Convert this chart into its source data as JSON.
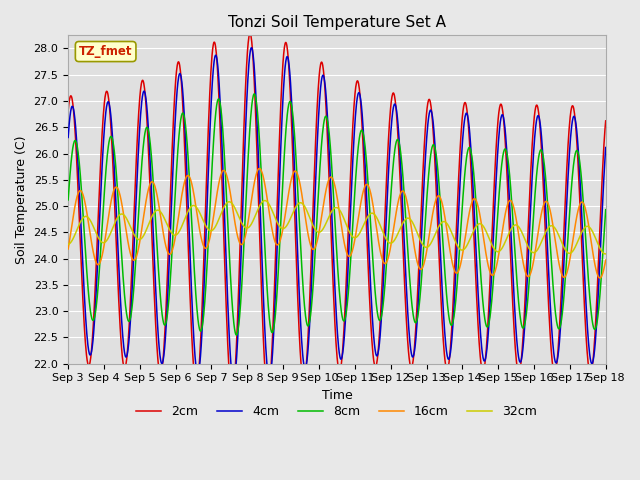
{
  "title": "Tonzi Soil Temperature Set A",
  "xlabel": "Time",
  "ylabel": "Soil Temperature (C)",
  "annotation": "TZ_fmet",
  "ylim": [
    22.0,
    28.25
  ],
  "yticks": [
    22.0,
    22.5,
    23.0,
    23.5,
    24.0,
    24.5,
    25.0,
    25.5,
    26.0,
    26.5,
    27.0,
    27.5,
    28.0
  ],
  "xtick_labels": [
    "Sep 3",
    "Sep 4",
    "Sep 5",
    "Sep 6",
    "Sep 7",
    "Sep 8",
    "Sep 9",
    "Sep 10",
    "Sep 11",
    "Sep 12",
    "Sep 13",
    "Sep 14",
    "Sep 15",
    "Sep 16",
    "Sep 17",
    "Sep 18"
  ],
  "series_colors": [
    "#dd0000",
    "#0000cc",
    "#00bb00",
    "#ff8800",
    "#cccc00"
  ],
  "series_labels": [
    "2cm",
    "4cm",
    "8cm",
    "16cm",
    "32cm"
  ],
  "fig_facecolor": "#e8e8e8",
  "ax_facecolor": "#e0e0e0",
  "grid_color": "#ffffff",
  "title_fontsize": 11,
  "axis_fontsize": 9,
  "tick_fontsize": 8,
  "legend_fontsize": 9
}
